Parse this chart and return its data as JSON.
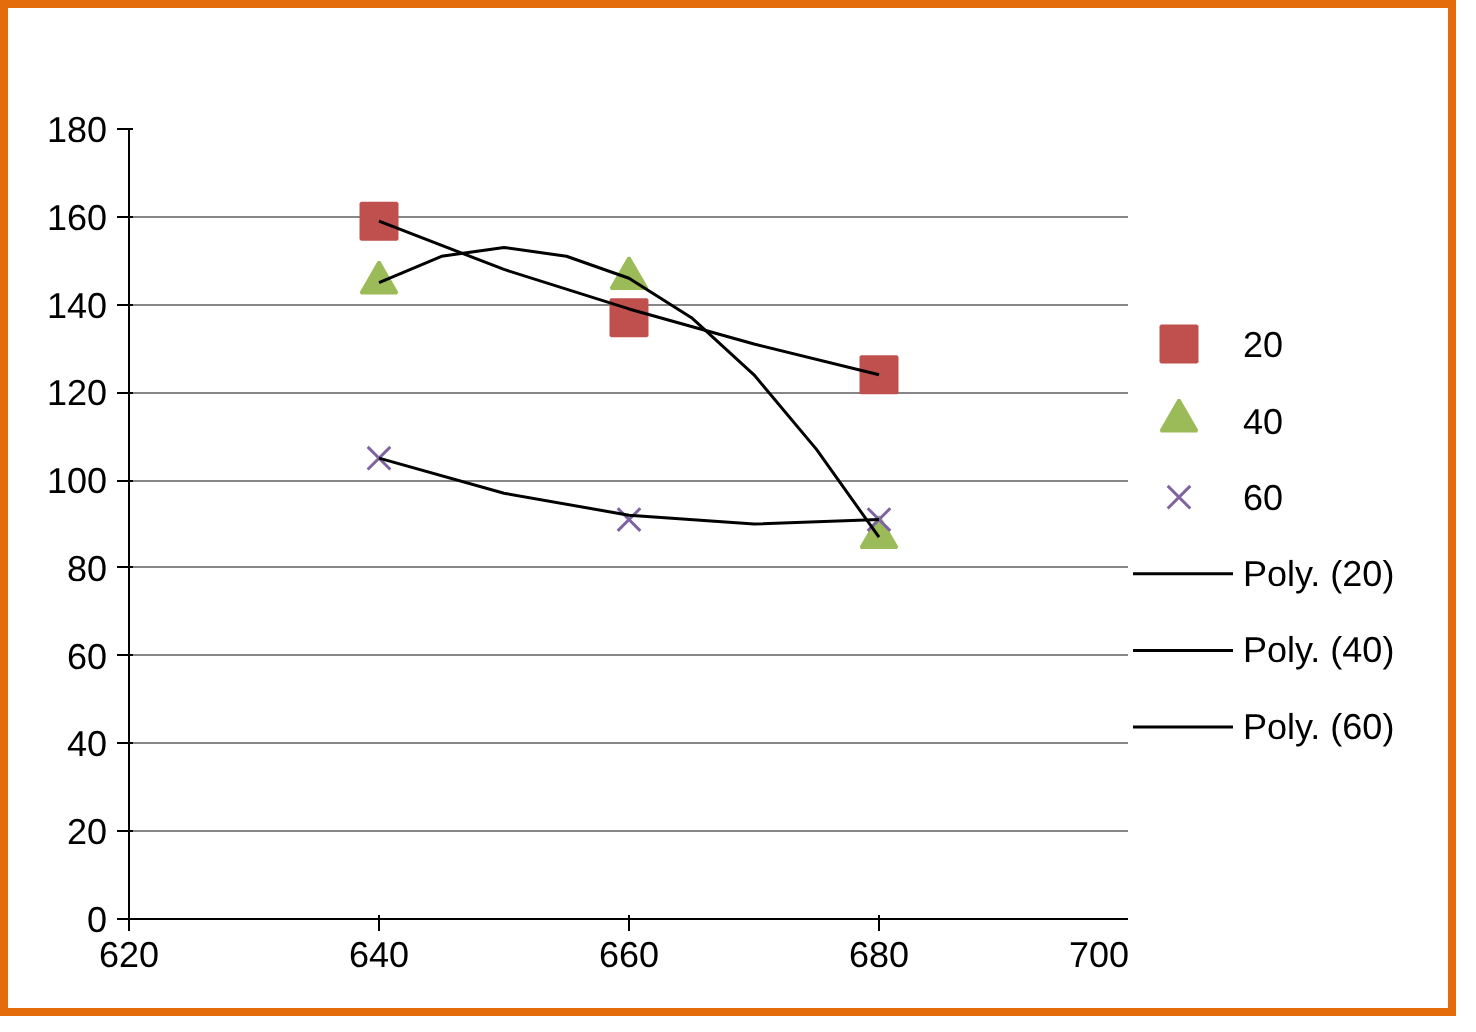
{
  "chart_data": {
    "type": "scatter",
    "xlim": [
      620,
      700
    ],
    "xticks": [
      620,
      640,
      660,
      680,
      700
    ],
    "ylim": [
      0,
      180
    ],
    "yticks": [
      0,
      20,
      40,
      60,
      80,
      100,
      120,
      140,
      160,
      180
    ],
    "grid": "y",
    "legend": "right",
    "x": [
      640,
      660,
      680
    ],
    "series": [
      {
        "name": "20",
        "color": "#c0504d",
        "marker": "square",
        "values": [
          159,
          137,
          124
        ]
      },
      {
        "name": "40",
        "color": "#9bbb59",
        "marker": "triangle",
        "values": [
          145,
          146,
          87
        ]
      },
      {
        "name": "60",
        "color": "#8064a2",
        "marker": "cross",
        "values": [
          105,
          91,
          91
        ]
      },
      {
        "name": "Poly. (20)",
        "type": "line",
        "color": "#000000",
        "x": [
          640,
          650,
          660,
          670,
          680
        ],
        "values": [
          159,
          148,
          139,
          131,
          124
        ]
      },
      {
        "name": "Poly. (40)",
        "type": "line",
        "color": "#000000",
        "x": [
          640,
          645,
          650,
          655,
          660,
          665,
          670,
          675,
          680
        ],
        "values": [
          145,
          151,
          153,
          151,
          146,
          137,
          124,
          107,
          87
        ]
      },
      {
        "name": "Poly. (60)",
        "type": "line",
        "color": "#000000",
        "x": [
          640,
          650,
          660,
          670,
          680
        ],
        "values": [
          105,
          97,
          92,
          90,
          91
        ]
      }
    ]
  }
}
